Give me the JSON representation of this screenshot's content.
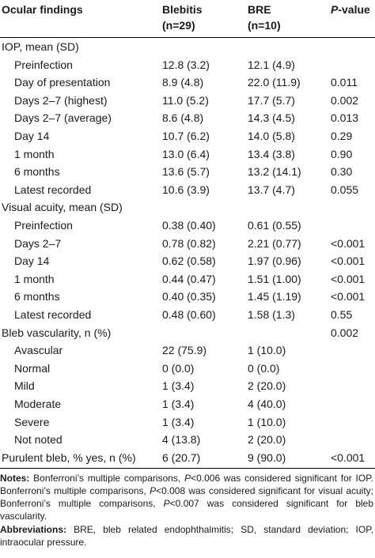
{
  "headers": {
    "c0": "Ocular findings",
    "c1_line1": "Blebitis",
    "c1_line2": "(n=29)",
    "c2_line1": "BRE",
    "c2_line2": "(n=10)",
    "c3_italic": "P",
    "c3_rest": "-value"
  },
  "rows": [
    {
      "label": "IOP, mean (SD)",
      "indent": false,
      "blebitis": "",
      "bre": "",
      "p": ""
    },
    {
      "label": "Preinfection",
      "indent": true,
      "blebitis": "12.8 (3.2)",
      "bre": "12.1 (4.9)",
      "p": ""
    },
    {
      "label": "Day of presentation",
      "indent": true,
      "blebitis": "8.9 (4.8)",
      "bre": "22.0 (11.9)",
      "p": "0.011"
    },
    {
      "label": "Days 2–7 (highest)",
      "indent": true,
      "blebitis": "11.0 (5.2)",
      "bre": "17.7 (5.7)",
      "p": "0.002"
    },
    {
      "label": "Days 2–7 (average)",
      "indent": true,
      "blebitis": "8.6 (4.8)",
      "bre": "14.3 (4.5)",
      "p": "0.013"
    },
    {
      "label": "Day 14",
      "indent": true,
      "blebitis": "10.7 (6.2)",
      "bre": "14.0 (5.8)",
      "p": "0.29"
    },
    {
      "label": "1 month",
      "indent": true,
      "blebitis": "13.0 (6.4)",
      "bre": "13.4 (3.8)",
      "p": "0.90"
    },
    {
      "label": "6 months",
      "indent": true,
      "blebitis": "13.6 (5.7)",
      "bre": "13.2 (14.1)",
      "p": "0.30"
    },
    {
      "label": "Latest recorded",
      "indent": true,
      "blebitis": "10.6 (3.9)",
      "bre": "13.7 (4.7)",
      "p": "0.055"
    },
    {
      "label": "Visual acuity, mean (SD)",
      "indent": false,
      "blebitis": "",
      "bre": "",
      "p": ""
    },
    {
      "label": "Preinfection",
      "indent": true,
      "blebitis": "0.38 (0.40)",
      "bre": "0.61 (0.55)",
      "p": ""
    },
    {
      "label": "Days 2–7",
      "indent": true,
      "blebitis": "0.78 (0.82)",
      "bre": "2.21 (0.77)",
      "p": "<0.001"
    },
    {
      "label": "Day 14",
      "indent": true,
      "blebitis": "0.62 (0.58)",
      "bre": "1.97 (0.96)",
      "p": "<0.001"
    },
    {
      "label": "1 month",
      "indent": true,
      "blebitis": "0.44 (0.47)",
      "bre": "1.51 (1.00)",
      "p": "<0.001"
    },
    {
      "label": "6 months",
      "indent": true,
      "blebitis": "0.40 (0.35)",
      "bre": "1.45 (1.19)",
      "p": "<0.001"
    },
    {
      "label": "Latest recorded",
      "indent": true,
      "blebitis": "0.48 (0.60)",
      "bre": "1.58 (1.3)",
      "p": "0.55"
    },
    {
      "label": "Bleb vascularity, n (%)",
      "indent": false,
      "blebitis": "",
      "bre": "",
      "p": "0.002"
    },
    {
      "label": "Avascular",
      "indent": true,
      "blebitis": "22 (75.9)",
      "bre": "1 (10.0)",
      "p": ""
    },
    {
      "label": "Normal",
      "indent": true,
      "blebitis": "0 (0.0)",
      "bre": "0 (0.0)",
      "p": ""
    },
    {
      "label": "Mild",
      "indent": true,
      "blebitis": "1 (3.4)",
      "bre": "2 (20.0)",
      "p": ""
    },
    {
      "label": "Moderate",
      "indent": true,
      "blebitis": "1 (3.4)",
      "bre": "4 (40.0)",
      "p": ""
    },
    {
      "label": "Severe",
      "indent": true,
      "blebitis": "1 (3.4)",
      "bre": "1 (10.0)",
      "p": ""
    },
    {
      "label": "Not noted",
      "indent": true,
      "blebitis": "4 (13.8)",
      "bre": "2 (20.0)",
      "p": ""
    },
    {
      "label": "Purulent bleb, % yes, n (%)",
      "indent": false,
      "blebitis": "6 (20.7)",
      "bre": "9 (90.0)",
      "p": "<0.001"
    }
  ],
  "notes": {
    "notes_label": "Notes:",
    "notes_s1": " Bonferroni’s multiple comparisons, ",
    "p1": "P",
    "notes_s2": "<0.006 was considered significant for IOP. Bonferroni’s multiple comparisons, ",
    "p2": "P",
    "notes_s3": "<0.008 was considered significant for visual acuity; Bonferroni’s multiple comparisons, ",
    "p3": "P",
    "notes_s4": "<0.007 was considered significant for bleb vascularity.",
    "abbrev_label": "Abbreviations:",
    "abbrev_text": " BRE, bleb related endophthalmitis; SD, standard deviation; IOP, intraocular pressure."
  }
}
